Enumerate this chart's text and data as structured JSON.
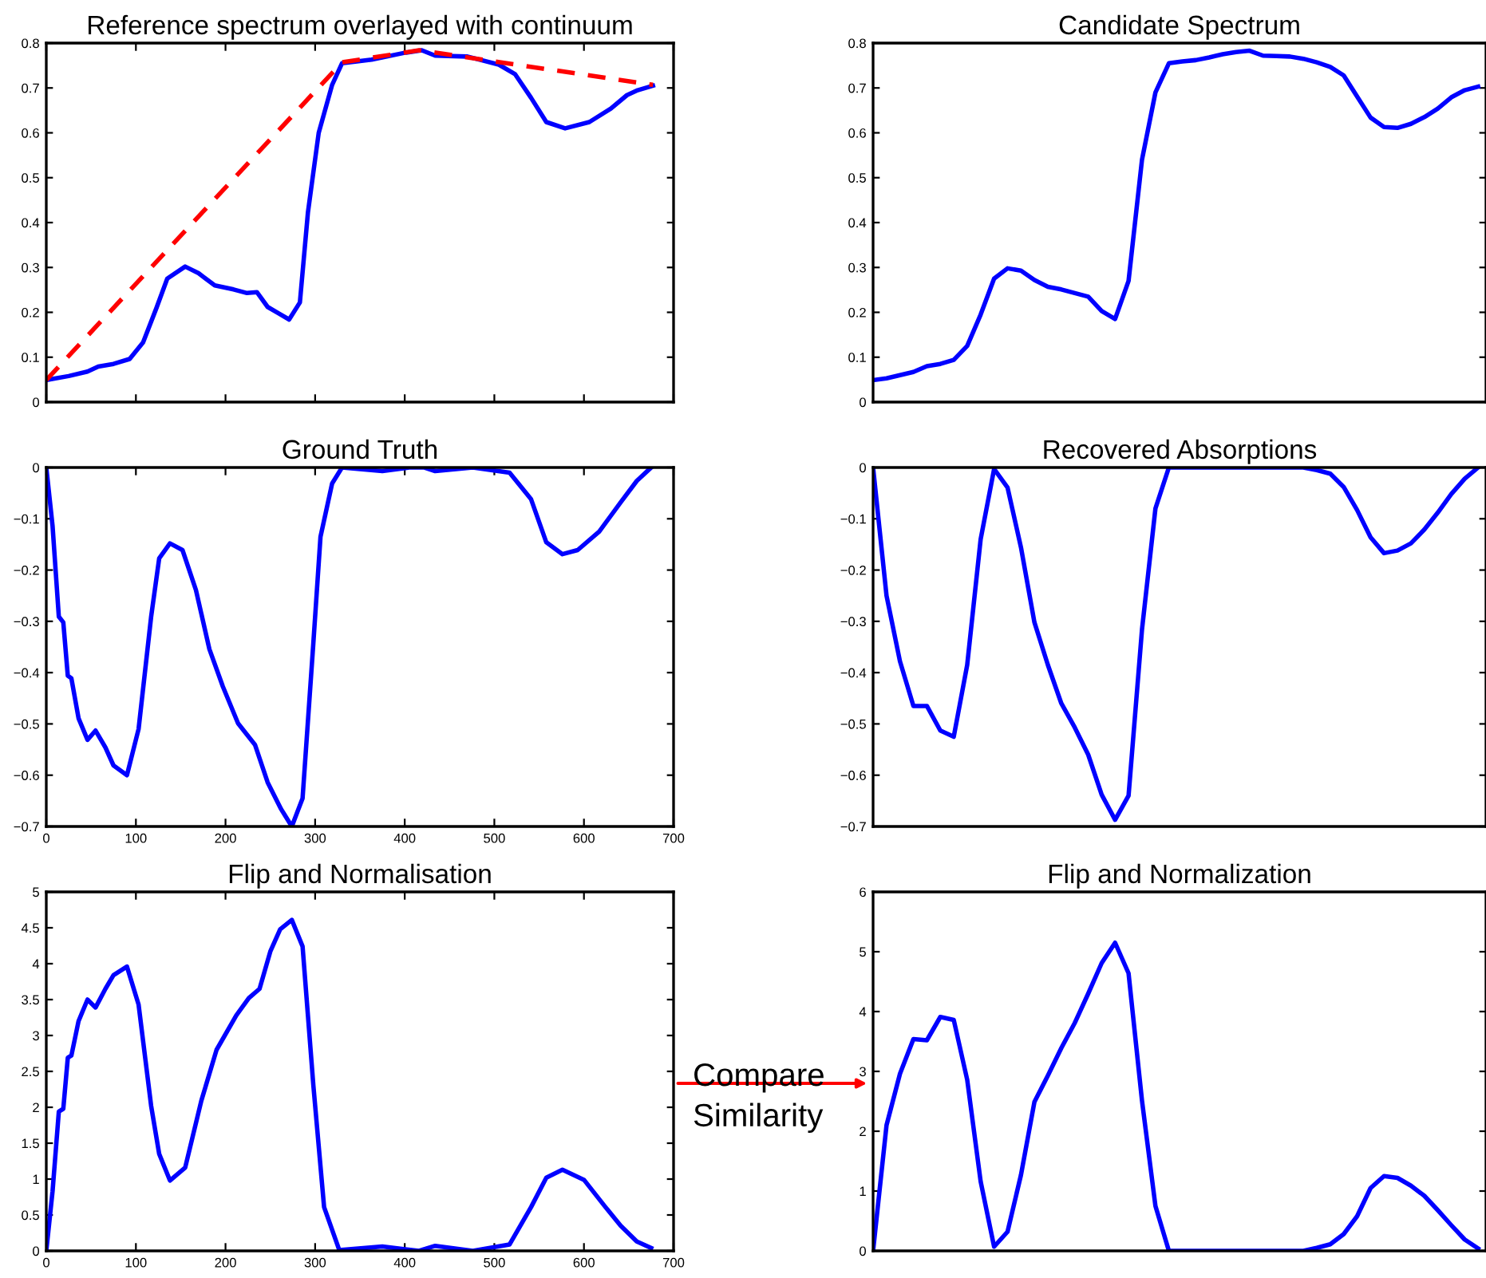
{
  "chart_data": [
    {
      "type": "line",
      "title": "Reference spectrum overlayed with continuum",
      "xlim": [
        0,
        700
      ],
      "xticks": [
        0,
        100,
        200,
        300,
        400,
        500,
        600,
        700
      ],
      "ylim": [
        0,
        0.8
      ],
      "yticks": [
        0,
        0.1,
        0.2,
        0.3,
        0.4,
        0.5,
        0.6,
        0.7,
        0.8
      ],
      "tick_labels": "y",
      "grid": false,
      "legend": false,
      "annotations": [
        "Compare\nSimilarity"
      ],
      "series": [
        {
          "color": "#0000ff",
          "line_style": "solid",
          "x": [
            0,
            25,
            46,
            58,
            75,
            93,
            108,
            123,
            135,
            155,
            170,
            188,
            209,
            224,
            235,
            247,
            259,
            271,
            283,
            292,
            304,
            319,
            330,
            363,
            399,
            419,
            434,
            470,
            505,
            523,
            541,
            558,
            579,
            606,
            630,
            648,
            660,
            677
          ],
          "values": [
            0.049,
            0.058,
            0.068,
            0.079,
            0.085,
            0.096,
            0.133,
            0.21,
            0.275,
            0.302,
            0.287,
            0.26,
            0.251,
            0.243,
            0.245,
            0.212,
            0.198,
            0.184,
            0.222,
            0.423,
            0.6,
            0.707,
            0.755,
            0.763,
            0.778,
            0.784,
            0.772,
            0.77,
            0.752,
            0.731,
            0.678,
            0.624,
            0.61,
            0.624,
            0.654,
            0.684,
            0.695,
            0.705
          ]
        },
        {
          "color": "#ff0000",
          "line_style": "dashed",
          "x": [
            0,
            330,
            416,
            677
          ],
          "values": [
            0.049,
            0.757,
            0.784,
            0.707
          ]
        }
      ]
    },
    {
      "type": "line",
      "title": "Candidate Spectrum",
      "categories": [
        null,
        null,
        null,
        null,
        null,
        null,
        null,
        null,
        null,
        null,
        null,
        null,
        null,
        null,
        null,
        null,
        null,
        null,
        null,
        null,
        null,
        null,
        null,
        null,
        null,
        null,
        null,
        null,
        null,
        null,
        null,
        null,
        null,
        null,
        null,
        null,
        null,
        null,
        null,
        null,
        null,
        null,
        null,
        null,
        null,
        null
      ],
      "ylim": [
        0,
        0.8
      ],
      "yticks": [
        0,
        0.1,
        0.2,
        0.3,
        0.4,
        0.5,
        0.6,
        0.7,
        0.8
      ],
      "tick_labels": "y",
      "grid": false,
      "legend": false,
      "series": [
        {
          "color": "#0000ff",
          "line_style": "solid",
          "values": [
            0.049,
            0.053,
            0.06,
            0.067,
            0.08,
            0.085,
            0.094,
            0.125,
            0.195,
            0.275,
            0.298,
            0.293,
            0.272,
            0.257,
            0.251,
            0.243,
            0.235,
            0.203,
            0.185,
            0.27,
            0.54,
            0.69,
            0.755,
            0.759,
            0.762,
            0.768,
            0.775,
            0.78,
            0.783,
            0.772,
            0.771,
            0.77,
            0.765,
            0.757,
            0.747,
            0.728,
            0.681,
            0.634,
            0.613,
            0.611,
            0.62,
            0.635,
            0.654,
            0.679,
            0.695,
            0.703
          ]
        }
      ]
    },
    {
      "type": "line",
      "title": "Ground Truth",
      "xlim": [
        0,
        700
      ],
      "xticks": [
        0,
        100,
        200,
        300,
        400,
        500,
        600,
        700
      ],
      "ylim": [
        -0.7,
        0
      ],
      "yticks": [
        {
          "value": -0.7,
          "label": "−0.7"
        },
        {
          "value": -0.6,
          "label": "−0.6"
        },
        {
          "value": -0.5,
          "label": "−0.5"
        },
        {
          "value": -0.4,
          "label": "−0.4"
        },
        {
          "value": -0.3,
          "label": "−0.3"
        },
        {
          "value": -0.2,
          "label": "−0.2"
        },
        {
          "value": -0.1,
          "label": "−0.1"
        },
        0
      ],
      "grid": false,
      "legend": false,
      "series": [
        {
          "color": "#0000ff",
          "line_style": "solid",
          "x": [
            0,
            7,
            14,
            19,
            24,
            28,
            36,
            46,
            55,
            66,
            75,
            90,
            103,
            117,
            126,
            138,
            152,
            167,
            182,
            197,
            214,
            233,
            247,
            262,
            274,
            286,
            298,
            306,
            319,
            330,
            375,
            405,
            422,
            434,
            476,
            517,
            541,
            558,
            576,
            593,
            617,
            641,
            659,
            675
          ],
          "values": [
            0,
            -0.114,
            -0.291,
            -0.302,
            -0.406,
            -0.411,
            -0.489,
            -0.531,
            -0.513,
            -0.546,
            -0.581,
            -0.6,
            -0.51,
            -0.291,
            -0.177,
            -0.148,
            -0.161,
            -0.239,
            -0.354,
            -0.427,
            -0.499,
            -0.541,
            -0.614,
            -0.666,
            -0.7,
            -0.645,
            -0.343,
            -0.135,
            -0.031,
            0,
            -0.007,
            0,
            0,
            -0.007,
            0,
            -0.01,
            -0.062,
            -0.146,
            -0.169,
            -0.161,
            -0.125,
            -0.068,
            -0.026,
            0
          ]
        }
      ]
    },
    {
      "type": "line",
      "title": "Recovered Absorptions",
      "categories": [
        null,
        null,
        null,
        null,
        null,
        null,
        null,
        null,
        null,
        null,
        null,
        null,
        null,
        null,
        null,
        null,
        null,
        null,
        null,
        null,
        null,
        null,
        null,
        null,
        null,
        null,
        null,
        null,
        null,
        null,
        null,
        null,
        null,
        null,
        null,
        null,
        null,
        null,
        null,
        null,
        null,
        null,
        null,
        null,
        null,
        null
      ],
      "ylim": [
        -0.7,
        0
      ],
      "yticks": [
        {
          "value": -0.7,
          "label": "−0.7"
        },
        {
          "value": -0.6,
          "label": "−0.6"
        },
        {
          "value": -0.5,
          "label": "−0.5"
        },
        {
          "value": -0.4,
          "label": "−0.4"
        },
        {
          "value": -0.3,
          "label": "−0.3"
        },
        {
          "value": -0.2,
          "label": "−0.2"
        },
        {
          "value": -0.1,
          "label": "−0.1"
        },
        0
      ],
      "tick_labels": "y",
      "grid": false,
      "legend": false,
      "series": [
        {
          "color": "#0000ff",
          "line_style": "solid",
          "values": [
            0,
            -0.25,
            -0.378,
            -0.465,
            -0.465,
            -0.513,
            -0.525,
            -0.385,
            -0.14,
            -0.003,
            -0.039,
            -0.156,
            -0.302,
            -0.385,
            -0.46,
            -0.507,
            -0.56,
            -0.638,
            -0.687,
            -0.64,
            -0.316,
            -0.08,
            0,
            0,
            0,
            0,
            0,
            0,
            0,
            0,
            0,
            0,
            0,
            -0.005,
            -0.012,
            -0.038,
            -0.083,
            -0.136,
            -0.167,
            -0.162,
            -0.148,
            -0.121,
            -0.088,
            -0.052,
            -0.022,
            0
          ]
        }
      ]
    },
    {
      "type": "line",
      "title": "Flip and Normalisation",
      "xlim": [
        0,
        700
      ],
      "xticks": [
        0,
        100,
        200,
        300,
        400,
        500,
        600,
        700
      ],
      "ylim": [
        0,
        5
      ],
      "yticks": [
        0,
        0.5,
        1,
        1.5,
        2,
        2.5,
        3,
        3.5,
        4,
        4.5,
        5
      ],
      "grid": false,
      "legend": false,
      "series": [
        {
          "color": "#0000ff",
          "line_style": "solid",
          "x": [
            0,
            7,
            14,
            19,
            24,
            28,
            36,
            46,
            55,
            66,
            75,
            90,
            103,
            117,
            126,
            138,
            155,
            173,
            190,
            212,
            226,
            238,
            250,
            261,
            274,
            286,
            298,
            310,
            327,
            375,
            416,
            434,
            476,
            517,
            541,
            558,
            576,
            600,
            624,
            641,
            659,
            675
          ],
          "values": [
            0,
            0.83,
            1.94,
            1.98,
            2.69,
            2.72,
            3.2,
            3.5,
            3.39,
            3.65,
            3.84,
            3.96,
            3.43,
            2.02,
            1.35,
            0.98,
            1.16,
            2.09,
            2.8,
            3.28,
            3.52,
            3.65,
            4.17,
            4.48,
            4.61,
            4.24,
            2.31,
            0.61,
            0.01,
            0.06,
            0,
            0.07,
            0,
            0.09,
            0.61,
            1.02,
            1.13,
            0.99,
            0.61,
            0.35,
            0.13,
            0.04
          ]
        }
      ]
    },
    {
      "type": "line",
      "title": "Flip and Normalization",
      "categories": [
        null,
        null,
        null,
        null,
        null,
        null,
        null,
        null,
        null,
        null,
        null,
        null,
        null,
        null,
        null,
        null,
        null,
        null,
        null,
        null,
        null,
        null,
        null,
        null,
        null,
        null,
        null,
        null,
        null,
        null,
        null,
        null,
        null,
        null,
        null,
        null,
        null,
        null,
        null,
        null,
        null,
        null,
        null,
        null,
        null,
        null
      ],
      "ylim": [
        0,
        6
      ],
      "yticks": [
        0,
        1,
        2,
        3,
        4,
        5,
        6
      ],
      "tick_labels": "y",
      "grid": false,
      "legend": false,
      "series": [
        {
          "color": "#0000ff",
          "line_style": "solid",
          "values": [
            0,
            2.1,
            2.96,
            3.54,
            3.52,
            3.91,
            3.86,
            2.86,
            1.16,
            0.07,
            0.32,
            1.27,
            2.49,
            2.93,
            3.39,
            3.81,
            4.3,
            4.81,
            5.15,
            4.64,
            2.51,
            0.75,
            0,
            0,
            0,
            0,
            0,
            0,
            0,
            0,
            0,
            0,
            0,
            0.05,
            0.11,
            0.28,
            0.58,
            1.05,
            1.25,
            1.22,
            1.09,
            0.92,
            0.68,
            0.43,
            0.19,
            0.04
          ]
        }
      ]
    }
  ]
}
